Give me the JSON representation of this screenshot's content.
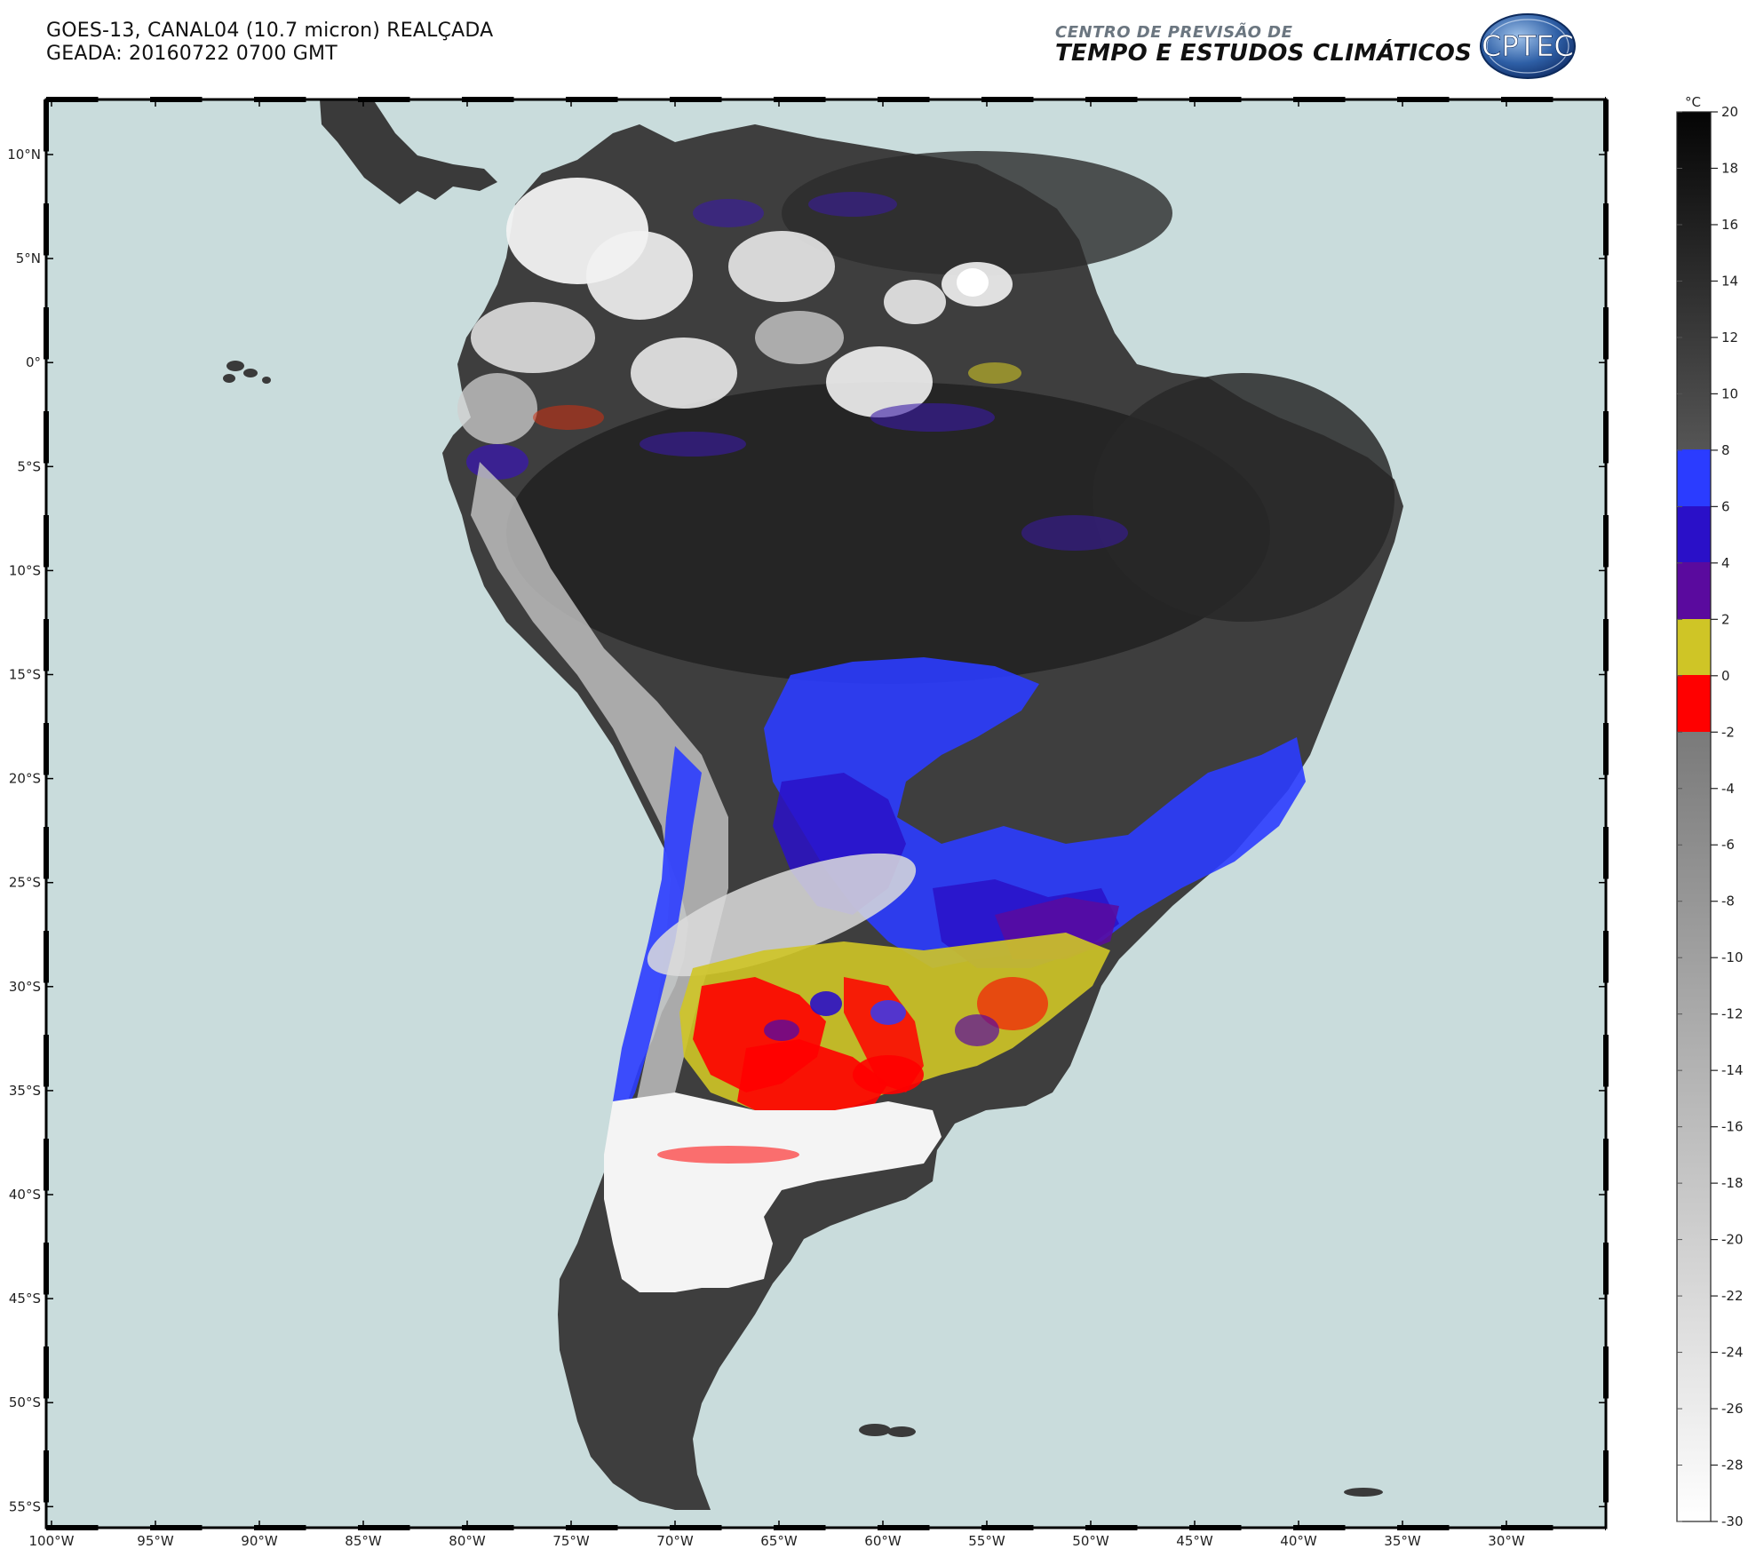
{
  "header": {
    "title_line1": "GOES-13, CANAL04 (10.7 micron) REALÇADA",
    "title_line2": "GEADA: 20160722 0700 GMT"
  },
  "org": {
    "line1": "CENTRO DE PREVISÃO DE",
    "line2": "TEMPO E ESTUDOS CLIMÁTICOS",
    "logo_text": "CPTEC"
  },
  "map": {
    "ocean_color": "#c9dcdc",
    "lat_labels": [
      "10°N",
      "5°N",
      "0°",
      "5°S",
      "10°S",
      "15°S",
      "20°S",
      "25°S",
      "30°S",
      "35°S",
      "40°S",
      "45°S",
      "50°S",
      "55°S"
    ],
    "lon_labels": [
      "100°W",
      "95°W",
      "90°W",
      "85°W",
      "80°W",
      "75°W",
      "70°W",
      "65°W",
      "60°W",
      "55°W",
      "50°W",
      "45°W",
      "40°W",
      "35°W",
      "30°W"
    ]
  },
  "colorbar": {
    "unit": "°C",
    "tick_labels": [
      "20",
      "18",
      "16",
      "14",
      "12",
      "10",
      "8",
      "6",
      "4",
      "2",
      "0",
      "-2",
      "-4",
      "-6",
      "-8",
      "-10",
      "-12",
      "-14",
      "-16",
      "-18",
      "-20",
      "-22",
      "-24",
      "-26",
      "-28",
      "-30"
    ],
    "colors": {
      "band_6_8": "#2b3cff",
      "band_4_6": "#2a10c8",
      "band_2_4": "#5a0a9e",
      "band_0_2": "#cfc526",
      "band_m2_0": "#ff0000"
    }
  }
}
